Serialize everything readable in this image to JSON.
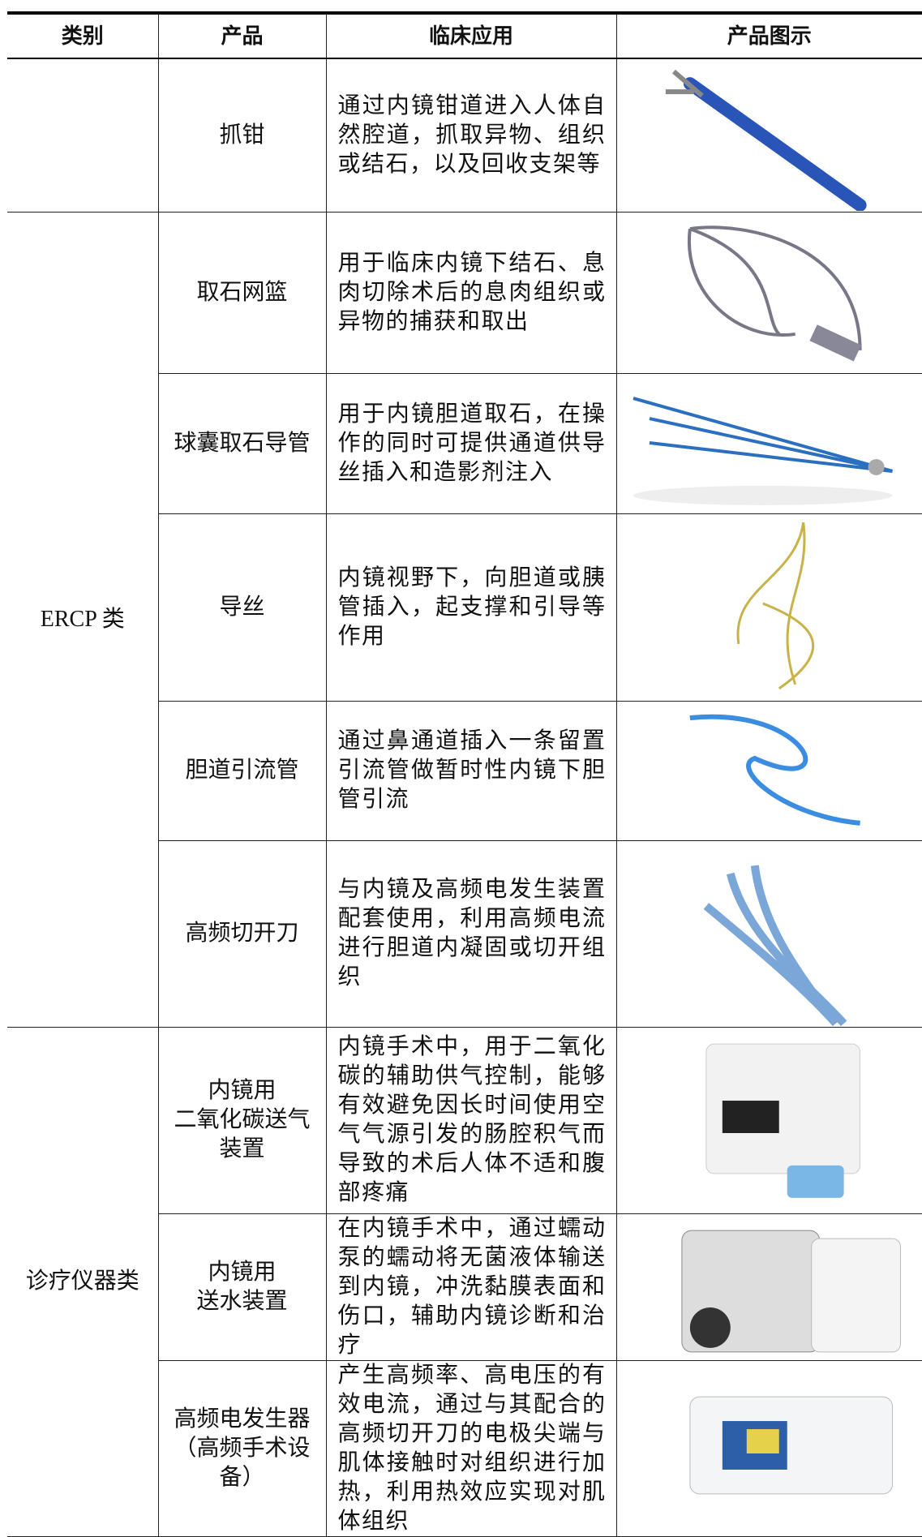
{
  "table": {
    "header": [
      "类别",
      "产品",
      "临床应用",
      "产品图示"
    ],
    "groups": [
      {
        "rows": [
          {
            "product": "抓钳",
            "application": "通过内镜钳道进入人体自然腔道，抓取异物、组织或结石，以及回收支架等"
          }
        ]
      },
      {
        "category": "ERCP 类",
        "rows": [
          {
            "product": "取石网篮",
            "application": "用于临床内镜下结石、息肉切除术后的息肉组织或异物的捕获和取出"
          },
          {
            "product": "球囊取石导管",
            "application": "用于内镜胆道取石，在操作的同时可提供通道供导丝插入和造影剂注入"
          },
          {
            "product": "导丝",
            "application": "内镜视野下，向胆道或胰管插入，起支撑和引导等作用"
          },
          {
            "product": "胆道引流管",
            "application": "通过鼻通道插入一条留置引流管做暂时性内镜下胆管引流"
          },
          {
            "product": "高频切开刀",
            "application": "与内镜及高频电发生装置配套使用，利用高频电流进行胆道内凝固或切开组织"
          }
        ]
      },
      {
        "category": "诊疗仪器类",
        "rows": [
          {
            "product": "内镜用\n二氧化碳送气\n装置",
            "application": "内镜手术中，用于二氧化碳的辅助供气控制，能够有效避免因长时间使用空气气源引发的肠腔积气而导致的术后人体不适和腹部疼痛"
          },
          {
            "product": "内镜用\n送水装置",
            "application": "在内镜手术中，通过蠕动泵的蠕动将无菌液体输送到内镜，冲洗黏膜表面和伤口，辅助内镜诊断和治疗"
          },
          {
            "product": "高频电发生器\n（高频手术设\n备）",
            "application": "产生高频率、高电压的有效电流，通过与其配合的高频切开刀的电极尖端与肌体接触时对组织进行加热，利用热效应实现对肌体组织"
          }
        ]
      }
    ]
  }
}
